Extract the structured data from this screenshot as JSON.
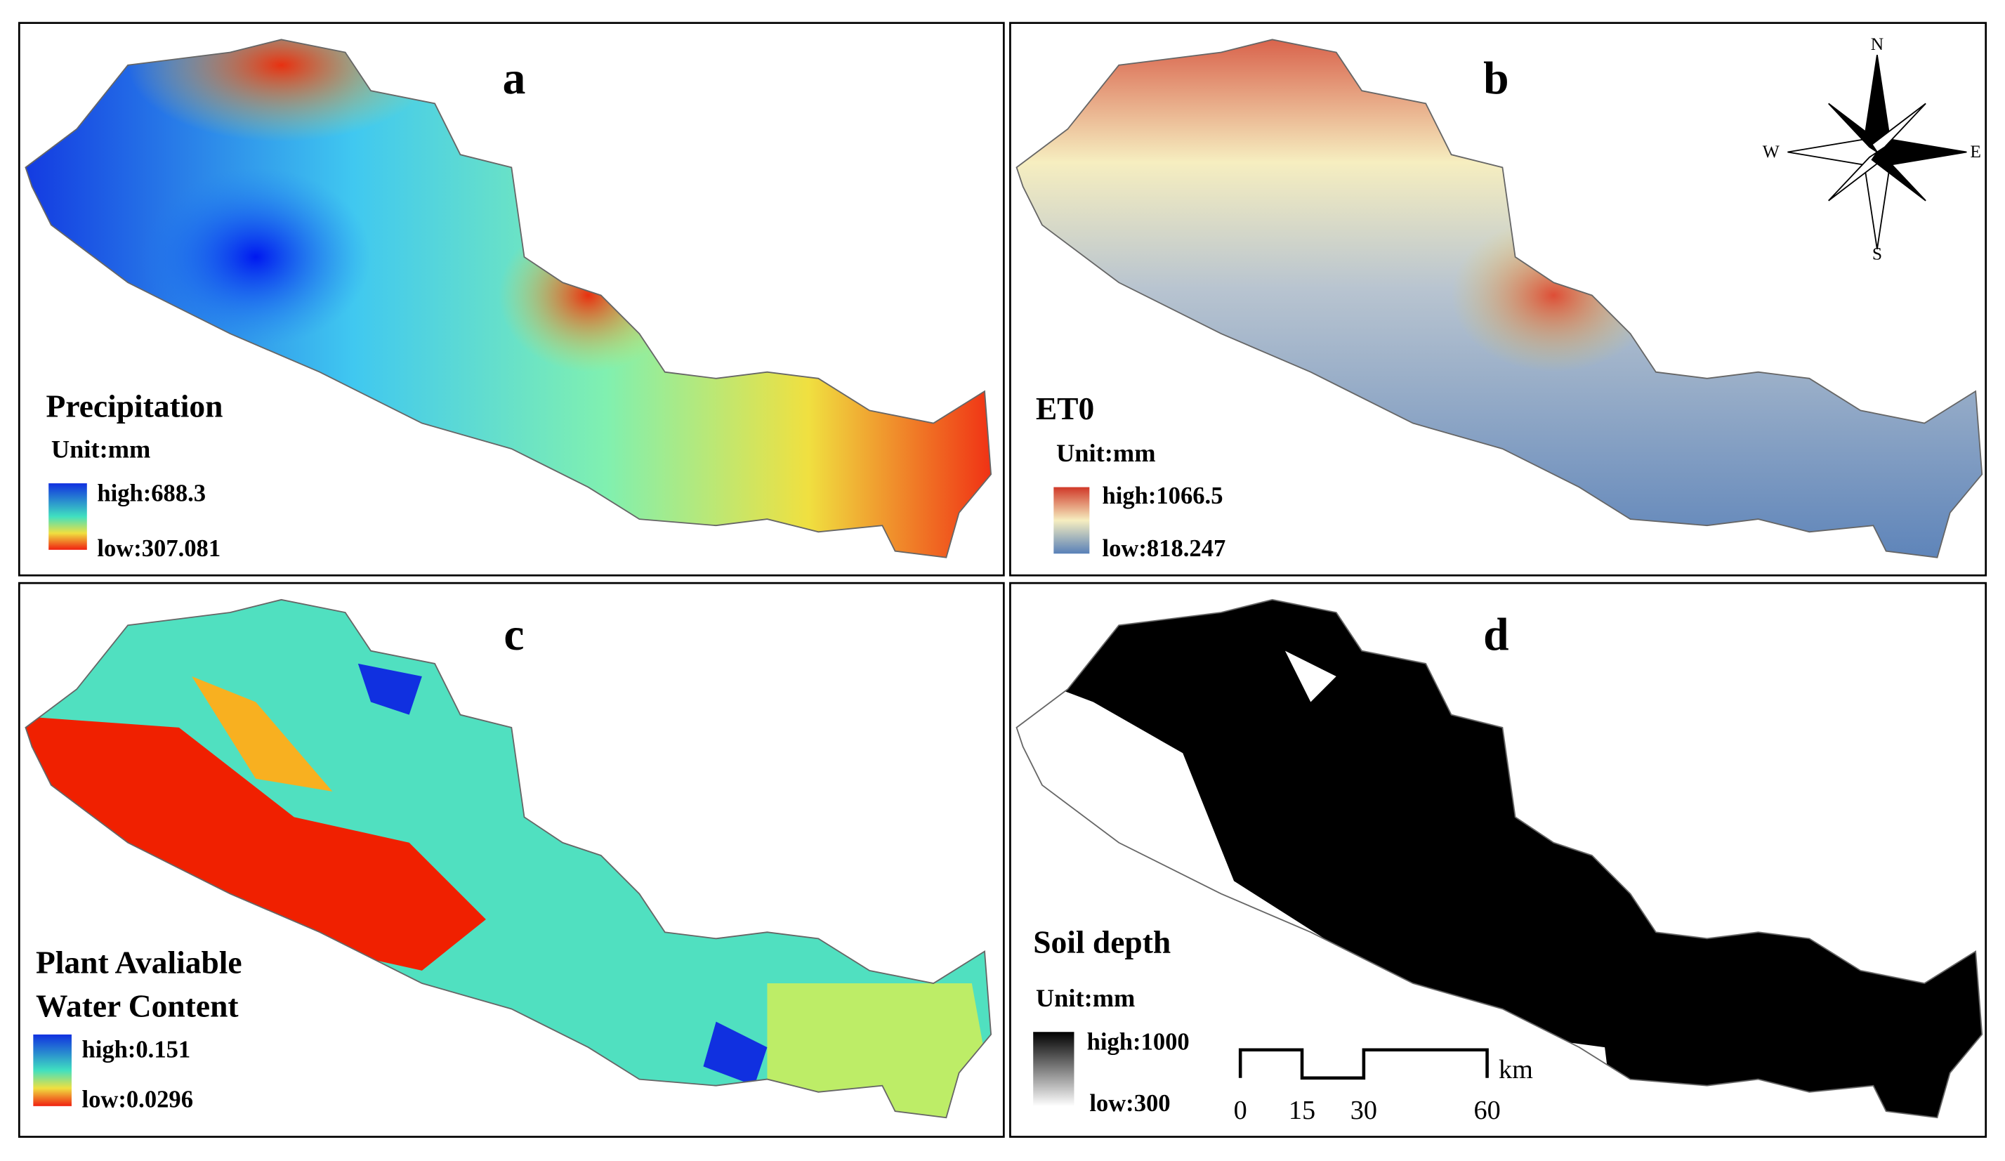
{
  "panels": [
    {
      "letter": "a",
      "title_lines": [
        "Precipitation"
      ],
      "unit": "Unit:mm",
      "legend_high": "high:688.3",
      "legend_low": "low:307.081"
    },
    {
      "letter": "b",
      "title_lines": [
        "ET0"
      ],
      "unit": "Unit:mm",
      "legend_high": "high:1066.5",
      "legend_low": "low:818.247"
    },
    {
      "letter": "c",
      "title_lines": [
        "Plant Avaliable",
        "Water Content"
      ],
      "legend_high": "high:0.151",
      "legend_low": "low:0.0296"
    },
    {
      "letter": "d",
      "title_lines": [
        "Soil depth"
      ],
      "unit": "Unit:mm",
      "legend_high": "high:1000",
      "legend_low": "low:300"
    }
  ],
  "compass": {
    "north": "N",
    "south": "S",
    "east": "E",
    "west": "W"
  },
  "scale_bar": {
    "ticks": [
      0,
      15,
      30,
      60
    ],
    "unit": "km"
  }
}
